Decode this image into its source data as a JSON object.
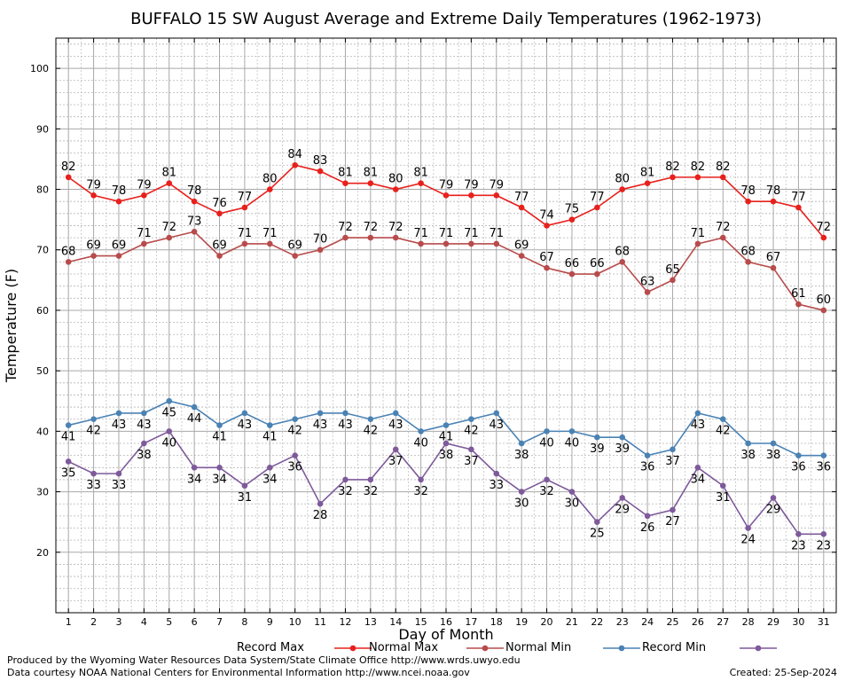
{
  "chart_data": {
    "type": "line",
    "title": "BUFFALO 15 SW August Average and Extreme Daily Temperatures (1962-1973)",
    "xlabel": "Day of Month",
    "ylabel": "Temperature (F)",
    "xlim": [
      0.5,
      31.5
    ],
    "ylim": [
      10,
      105
    ],
    "yticks": [
      20,
      30,
      40,
      50,
      60,
      70,
      80,
      90,
      100
    ],
    "grid": true,
    "legend_position": "bottom",
    "x": [
      1,
      2,
      3,
      4,
      5,
      6,
      7,
      8,
      9,
      10,
      11,
      12,
      13,
      14,
      15,
      16,
      17,
      18,
      19,
      20,
      21,
      22,
      23,
      24,
      25,
      26,
      27,
      28,
      29,
      30,
      31
    ],
    "series": [
      {
        "name": "Record Max",
        "color": "#e8201c",
        "label_position": "above",
        "values": [
          82,
          79,
          78,
          79,
          81,
          78,
          76,
          77,
          80,
          84,
          83,
          81,
          81,
          80,
          81,
          79,
          79,
          79,
          77,
          74,
          75,
          77,
          80,
          81,
          82,
          82,
          82,
          78,
          78,
          77,
          72
        ]
      },
      {
        "name": "Normal Max",
        "color": "#b84b4b",
        "label_position": "above",
        "values": [
          68,
          69,
          69,
          71,
          72,
          73,
          69,
          71,
          71,
          69,
          70,
          72,
          72,
          72,
          71,
          71,
          71,
          71,
          69,
          67,
          66,
          66,
          68,
          63,
          65,
          71,
          72,
          68,
          67,
          61,
          60
        ]
      },
      {
        "name": "Normal Min",
        "color": "#4a82b4",
        "label_position": "below",
        "values": [
          41,
          42,
          43,
          43,
          45,
          44,
          41,
          43,
          41,
          42,
          43,
          43,
          42,
          43,
          40,
          41,
          42,
          43,
          38,
          40,
          40,
          39,
          39,
          36,
          37,
          43,
          42,
          38,
          38,
          36,
          36
        ]
      },
      {
        "name": "Record Min",
        "color": "#7e5a9b",
        "label_position": "below",
        "values": [
          35,
          33,
          33,
          38,
          40,
          34,
          34,
          31,
          34,
          36,
          28,
          32,
          32,
          37,
          32,
          38,
          37,
          33,
          30,
          32,
          30,
          25,
          29,
          26,
          27,
          34,
          31,
          24,
          29,
          23,
          23
        ]
      }
    ]
  },
  "footer": {
    "produced_by": "Produced by the Wyoming Water Resources Data System/State Climate Office http://www.wrds.uwyo.edu",
    "data_courtesy": "Data courtesy NOAA National Centers for Environmental Information http://www.ncei.noaa.gov",
    "created": "Created: 25-Sep-2024"
  }
}
